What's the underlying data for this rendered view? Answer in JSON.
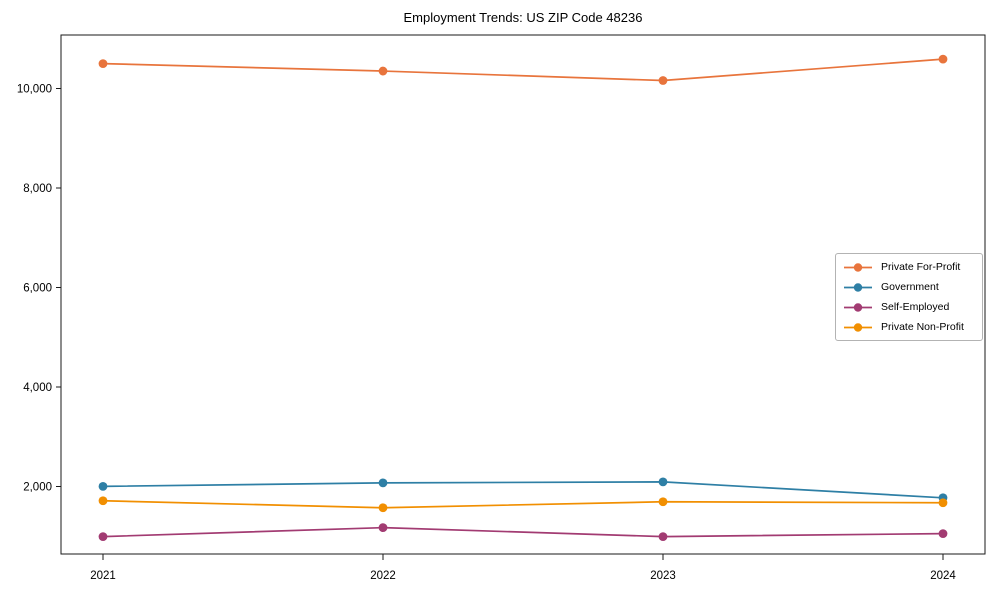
{
  "chart_data": {
    "type": "line",
    "title": "Employment Trends: US ZIP Code 48236",
    "x": [
      2021,
      2022,
      2023,
      2024
    ],
    "x_tick_labels": [
      "2021",
      "2022",
      "2023",
      "2024"
    ],
    "y_ticks": [
      2000,
      4000,
      6000,
      8000,
      10000
    ],
    "y_tick_labels": [
      "2,000",
      "4,000",
      "6,000",
      "8,000",
      "10,000"
    ],
    "xlim": [
      2020.85,
      2024.15
    ],
    "ylim": [
      640,
      11075
    ],
    "grid": false,
    "legend_position": "center-right",
    "axis_color": "#1a1a1a",
    "legend_border_color": "#b3b3b3",
    "series": [
      {
        "name": "Private For-Profit",
        "color": "#E8743C",
        "values": [
          10500,
          10350,
          10160,
          10590
        ]
      },
      {
        "name": "Government",
        "color": "#2E7FA5",
        "values": [
          2000,
          2070,
          2090,
          1770
        ]
      },
      {
        "name": "Self-Employed",
        "color": "#A23B72",
        "values": [
          990,
          1170,
          990,
          1050
        ]
      },
      {
        "name": "Private Non-Profit",
        "color": "#F18F01",
        "values": [
          1710,
          1570,
          1690,
          1670
        ]
      }
    ]
  }
}
